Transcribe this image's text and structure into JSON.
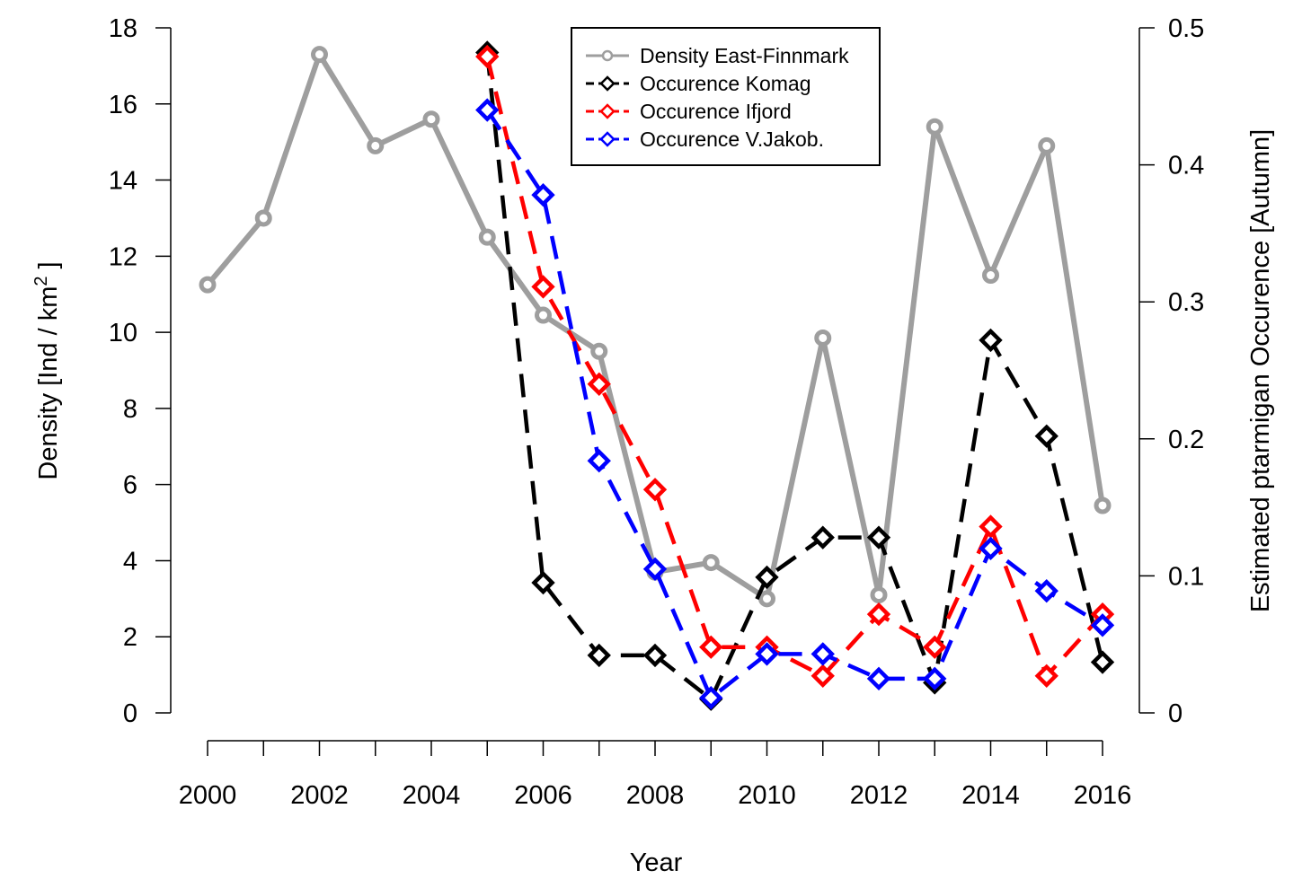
{
  "chart_data": {
    "type": "line",
    "xlabel": "Year",
    "ylabel_left": {
      "prefix": "Density [Ind / km",
      "sup": "2",
      "suffix": " ]"
    },
    "ylabel_right": "Estimated ptarmigan Occurence [Autumn]",
    "left_axis": {
      "ylim": [
        0,
        18
      ],
      "ticks": [
        0,
        2,
        4,
        6,
        8,
        10,
        12,
        14,
        16,
        18
      ]
    },
    "right_axis": {
      "ylim": [
        0,
        0.5
      ],
      "ticks": [
        "0",
        "0.1",
        "0.2",
        "0.3",
        "0.4",
        "0.5"
      ]
    },
    "x_axis": {
      "xlim": [
        2000,
        2016
      ],
      "minor_ticks": [
        2000,
        2001,
        2002,
        2003,
        2004,
        2005,
        2006,
        2007,
        2008,
        2009,
        2010,
        2011,
        2012,
        2013,
        2014,
        2015,
        2016
      ],
      "labels": [
        "2000",
        "2002",
        "2004",
        "2006",
        "2008",
        "2010",
        "2012",
        "2014",
        "2016"
      ]
    },
    "grid": false,
    "legend_position": "top-center",
    "series": [
      {
        "name": "Density East-Finnmark",
        "axis": "left",
        "color": "#9e9e9e",
        "line_style": "solid",
        "marker": "circle",
        "x": [
          2000,
          2001,
          2002,
          2003,
          2004,
          2005,
          2006,
          2007,
          2008,
          2009,
          2010,
          2011,
          2012,
          2013,
          2014,
          2015,
          2016
        ],
        "values": [
          11.25,
          13.0,
          17.3,
          14.9,
          15.6,
          12.5,
          10.45,
          9.5,
          3.7,
          3.95,
          3.0,
          9.85,
          3.1,
          15.4,
          11.5,
          14.9,
          5.45
        ]
      },
      {
        "name": "Occurence Komag",
        "axis": "right",
        "color": "#000000",
        "line_style": "dashed",
        "marker": "diamond",
        "x": [
          2005,
          2006,
          2007,
          2008,
          2009,
          2010,
          2011,
          2012,
          2013,
          2014,
          2015,
          2016
        ],
        "values": [
          0.482,
          0.095,
          0.042,
          0.042,
          0.01,
          0.099,
          0.128,
          0.128,
          0.022,
          0.272,
          0.202,
          0.037
        ]
      },
      {
        "name": "Occurence Ifjord",
        "axis": "right",
        "color": "#ff0000",
        "line_style": "dashed",
        "marker": "diamond",
        "x": [
          2005,
          2006,
          2007,
          2008,
          2009,
          2010,
          2011,
          2012,
          2013,
          2014,
          2015,
          2016
        ],
        "values": [
          0.479,
          0.311,
          0.24,
          0.163,
          0.048,
          0.048,
          0.027,
          0.072,
          0.048,
          0.136,
          0.027,
          0.072
        ]
      },
      {
        "name": "Occurence V.Jakob.",
        "axis": "right",
        "color": "#0000ff",
        "line_style": "dashed",
        "marker": "diamond",
        "x": [
          2005,
          2006,
          2007,
          2008,
          2009,
          2010,
          2011,
          2012,
          2013,
          2014,
          2015,
          2016
        ],
        "values": [
          0.44,
          0.378,
          0.184,
          0.105,
          0.011,
          0.043,
          0.043,
          0.025,
          0.025,
          0.12,
          0.089,
          0.064
        ]
      }
    ]
  }
}
